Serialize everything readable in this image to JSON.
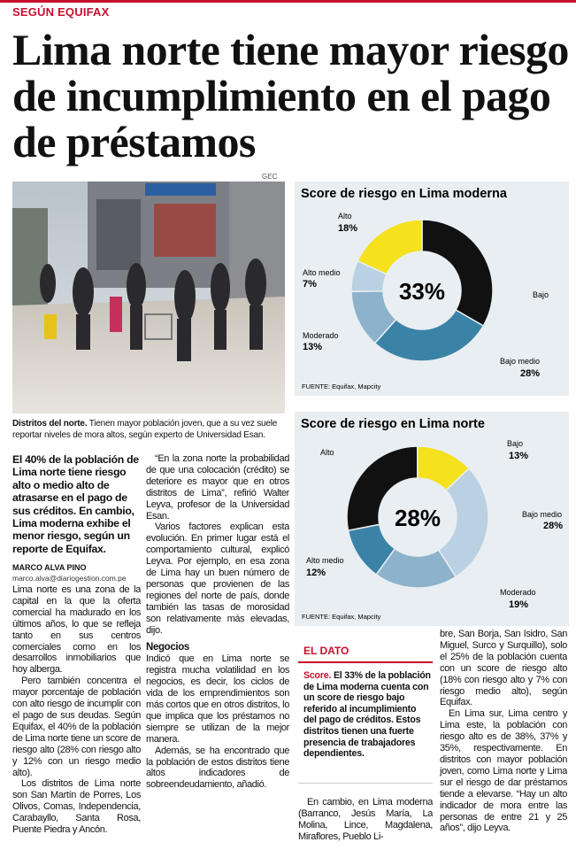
{
  "kicker": "SEGÚN EQUIFAX",
  "headline": "Lima norte tiene mayor riesgo de incumplimiento en el pago de préstamos",
  "photo": {
    "credit": "GEC",
    "caption_lead": "Distritos del norte.",
    "caption": "Tienen mayor población joven, que a su vez suele reportar niveles de mora altos, según experto de Universidad Esan."
  },
  "chart_data": [
    {
      "type": "donut",
      "title": "Score de riesgo en Lima moderna",
      "categories": [
        "Bajo",
        "Bajo medio",
        "Moderado",
        "Alto medio",
        "Alto"
      ],
      "values": [
        33,
        28,
        13,
        7,
        18
      ],
      "value_labels": [
        "33%",
        "28%",
        "13%",
        "7%",
        "18%"
      ],
      "colors": [
        "#111111",
        "#3b83a6",
        "#8db2cb",
        "#b9d1e2",
        "#f5e11c"
      ],
      "source": "FUENTE: Equifax, Mapcity"
    },
    {
      "type": "donut",
      "title": "Score de riesgo en Lima norte",
      "categories": [
        "Alto",
        "Bajo",
        "Bajo medio",
        "Moderado",
        "Alto medio"
      ],
      "values": [
        28,
        13,
        28,
        19,
        12
      ],
      "value_labels": [
        "28%",
        "13%",
        "28%",
        "19%",
        "12%"
      ],
      "colors": [
        "#111111",
        "#f5e11c",
        "#b9d1e2",
        "#8db2cb",
        "#3b83a6"
      ],
      "source": "FUENTE: Equifax, Mapcity"
    }
  ],
  "article": {
    "lead": "El 40% de la población de Lima norte tiene riesgo alto o medio alto de atrasarse en el pago de sus créditos. En cambio, Lima moderna exhibe el menor riesgo, según un reporte de Equifax.",
    "byline": "MARCO ALVA PINO",
    "email": "marco.alva@diariogestion.com.pe",
    "col1": [
      "Lima norte es una zona de la capital en la que la oferta comercial ha madurado en los últimos años, lo que se refleja tanto en sus centros comerciales como en los desarrollos inmobiliarios que hoy alberga.",
      "Pero también concentra el mayor porcentaje de población con alto riesgo de incumplir con el pago de sus deudas. Según Equifax, el 40% de la población de Lima norte tiene un score de riesgo alto (28% con riesgo alto y 12% con un riesgo medio alto).",
      "Los distritos de Lima norte son San Martín de Porres, Los Olivos, Comas, Independencia, Carabayllo, Santa Rosa, Puente Piedra y Ancón."
    ],
    "col2a": [
      "“En la zona norte la probabilidad de que una colocación (crédito) se deteriore es mayor que en otros distritos de Lima”, refirió Walter Leyva, profesor de la Universidad Esan.",
      "Varios factores explican esta evolución. En primer lugar está el comportamiento cultural, explicó Leyva. Por ejemplo, en esa zona de Lima hay un buen número de personas que provienen de las regiones del norte de país, donde también las tasas de morosidad son relativamente más elevadas, dijo."
    ],
    "subhead": "Negocios",
    "col2b": [
      "Indicó que en Lima norte se registra mucha volatilidad en los negocios, es decir, los ciclos de vida de los emprendimientos son más cortos que en otros distritos, lo que implica que los préstamos no siempre se utilizan de la mejor manera.",
      "Además, se ha encontrado que la población de estos distritos tiene altos indicadores de sobreendeudamiento, añadió."
    ],
    "box": {
      "title": "EL DATO",
      "label": "Score.",
      "text": "El 33% de la población de Lima moderna cuenta con un score de riesgo bajo referido al incumplimiento del pago de créditos. Estos distritos tienen una fuerte presencia de trabajadores dependientes."
    },
    "col3": [
      "En cambio, en Lima moderna (Barranco, Jesús María, La Molina, Lince, Magdalena, Miraflores, Pueblo Li-"
    ],
    "col4": [
      "bre, San Borja, San Isidro, San Miguel, Surco y Surquillo), solo el 25% de la población cuenta con un score de riesgo alto (18% con riesgo alto y 7% con riesgo medio alto), según Equifax.",
      "En Lima sur, Lima centro y Lima este, la población con riesgo alto es de 38%, 37% y 35%, respectivamente. En distritos con mayor población joven, como Lima norte y Lima sur el riesgo de dar préstamos tiende a elevarse. “Hay un alto indicador de mora entre las personas de entre 21 y 25 años”, dijo Leyva."
    ]
  }
}
